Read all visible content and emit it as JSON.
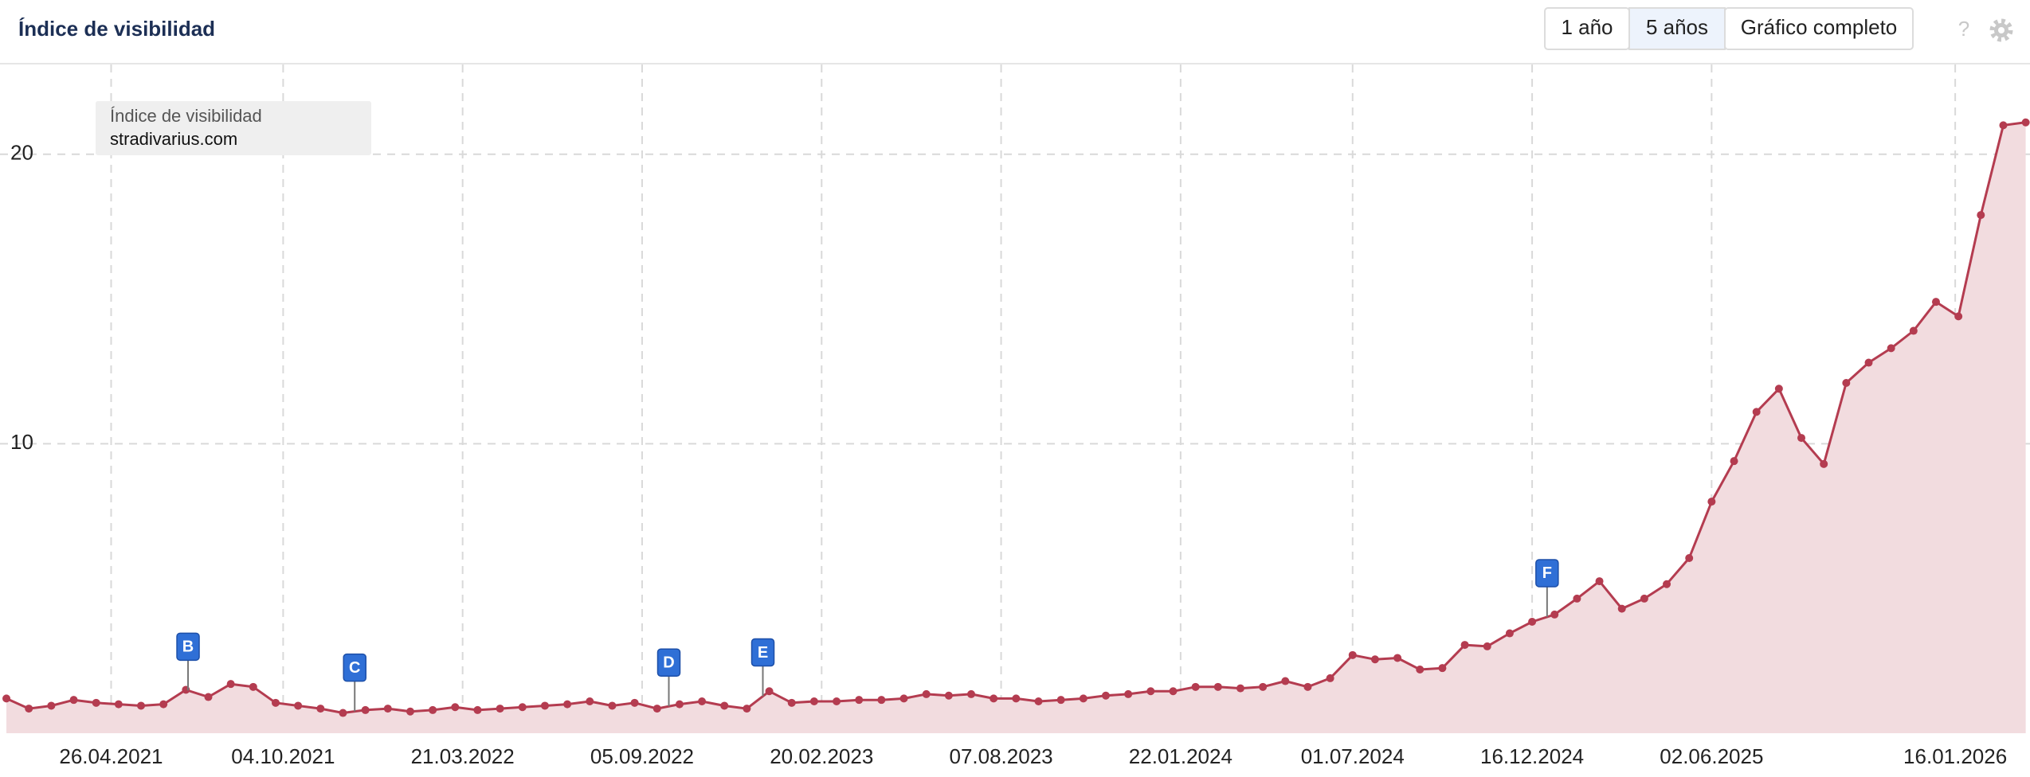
{
  "header": {
    "title": "Índice de visibilidad",
    "controls": [
      "1 año",
      "5 años",
      "Gráfico completo"
    ],
    "active_control": "5 años",
    "help": "?"
  },
  "chart_data": {
    "type": "line",
    "legend_title": "Índice de visibilidad",
    "x": [
      "18.01.2021",
      "08.02.2021",
      "01.03.2021",
      "22.03.2021",
      "12.04.2021",
      "03.05.2021",
      "24.05.2021",
      "14.06.2021",
      "05.07.2021",
      "26.07.2021",
      "16.08.2021",
      "06.09.2021",
      "27.09.2021",
      "18.10.2021",
      "08.11.2021",
      "29.11.2021",
      "20.12.2021",
      "10.01.2022",
      "31.01.2022",
      "21.02.2022",
      "14.03.2022",
      "04.04.2022",
      "25.04.2022",
      "16.05.2022",
      "06.06.2022",
      "27.06.2022",
      "18.07.2022",
      "08.08.2022",
      "29.08.2022",
      "19.09.2022",
      "10.10.2022",
      "31.10.2022",
      "21.11.2022",
      "12.12.2022",
      "02.01.2023",
      "23.01.2023",
      "13.02.2023",
      "06.03.2023",
      "27.03.2023",
      "17.04.2023",
      "08.05.2023",
      "29.05.2023",
      "19.06.2023",
      "10.07.2023",
      "31.07.2023",
      "21.08.2023",
      "11.09.2023",
      "02.10.2023",
      "23.10.2023",
      "13.11.2023",
      "04.12.2023",
      "25.12.2023",
      "15.01.2024",
      "05.02.2024",
      "26.02.2024",
      "18.03.2024",
      "08.04.2024",
      "29.04.2024",
      "20.05.2024",
      "10.06.2024",
      "01.07.2024",
      "22.07.2024",
      "12.08.2024",
      "02.09.2024",
      "23.09.2024",
      "14.10.2024",
      "04.11.2024",
      "25.11.2024",
      "16.12.2024",
      "06.01.2025",
      "27.01.2025",
      "17.02.2025",
      "10.03.2025",
      "31.03.2025",
      "21.04.2025",
      "12.05.2025",
      "02.06.2025",
      "23.06.2025",
      "14.07.2025",
      "04.08.2025",
      "25.08.2025",
      "15.09.2025",
      "06.10.2025",
      "27.10.2025",
      "17.11.2025",
      "08.12.2025",
      "29.12.2025",
      "19.01.2026",
      "09.02.2026",
      "02.03.2026",
      "23.03.2026"
    ],
    "series": [
      {
        "name": "stradivarius.com",
        "color": "#b43c50",
        "values": [
          1.2,
          0.85,
          0.95,
          1.15,
          1.05,
          1.0,
          0.95,
          1.0,
          1.5,
          1.25,
          1.7,
          1.6,
          1.05,
          0.95,
          0.85,
          0.7,
          0.8,
          0.85,
          0.75,
          0.8,
          0.9,
          0.8,
          0.85,
          0.9,
          0.95,
          1.0,
          1.1,
          0.95,
          1.05,
          0.85,
          1.0,
          1.1,
          0.95,
          0.85,
          1.45,
          1.05,
          1.1,
          1.1,
          1.15,
          1.15,
          1.2,
          1.35,
          1.3,
          1.35,
          1.2,
          1.2,
          1.1,
          1.15,
          1.2,
          1.3,
          1.35,
          1.45,
          1.45,
          1.6,
          1.6,
          1.55,
          1.6,
          1.8,
          1.6,
          1.9,
          2.7,
          2.55,
          2.6,
          2.2,
          2.25,
          3.05,
          3.0,
          3.45,
          3.85,
          4.1,
          4.65,
          5.25,
          4.3,
          4.65,
          5.15,
          6.05,
          8.0,
          9.4,
          11.1,
          11.9,
          10.2,
          9.3,
          12.1,
          12.8,
          13.3,
          13.9,
          14.9,
          14.4,
          17.9,
          21.0,
          21.1
        ]
      }
    ],
    "fill_color": "#f2dcdf",
    "xlim": [
      "12.01.2021",
      "27.03.2026"
    ],
    "xticks": [
      "26.04.2021",
      "04.10.2021",
      "21.03.2022",
      "05.09.2022",
      "20.02.2023",
      "07.08.2023",
      "22.01.2024",
      "01.07.2024",
      "16.12.2024",
      "02.06.2025",
      "16.01.2026"
    ],
    "ylim": [
      0,
      23.1
    ],
    "yticks": [
      10,
      20
    ],
    "grid": true,
    "annotations": [
      {
        "label": "B",
        "x": "07.07.2021"
      },
      {
        "label": "C",
        "x": "10.12.2021"
      },
      {
        "label": "D",
        "x": "30.09.2022"
      },
      {
        "label": "E",
        "x": "27.12.2022"
      },
      {
        "label": "F",
        "x": "30.12.2024"
      }
    ],
    "annotation_color": "#2f6fd6"
  }
}
